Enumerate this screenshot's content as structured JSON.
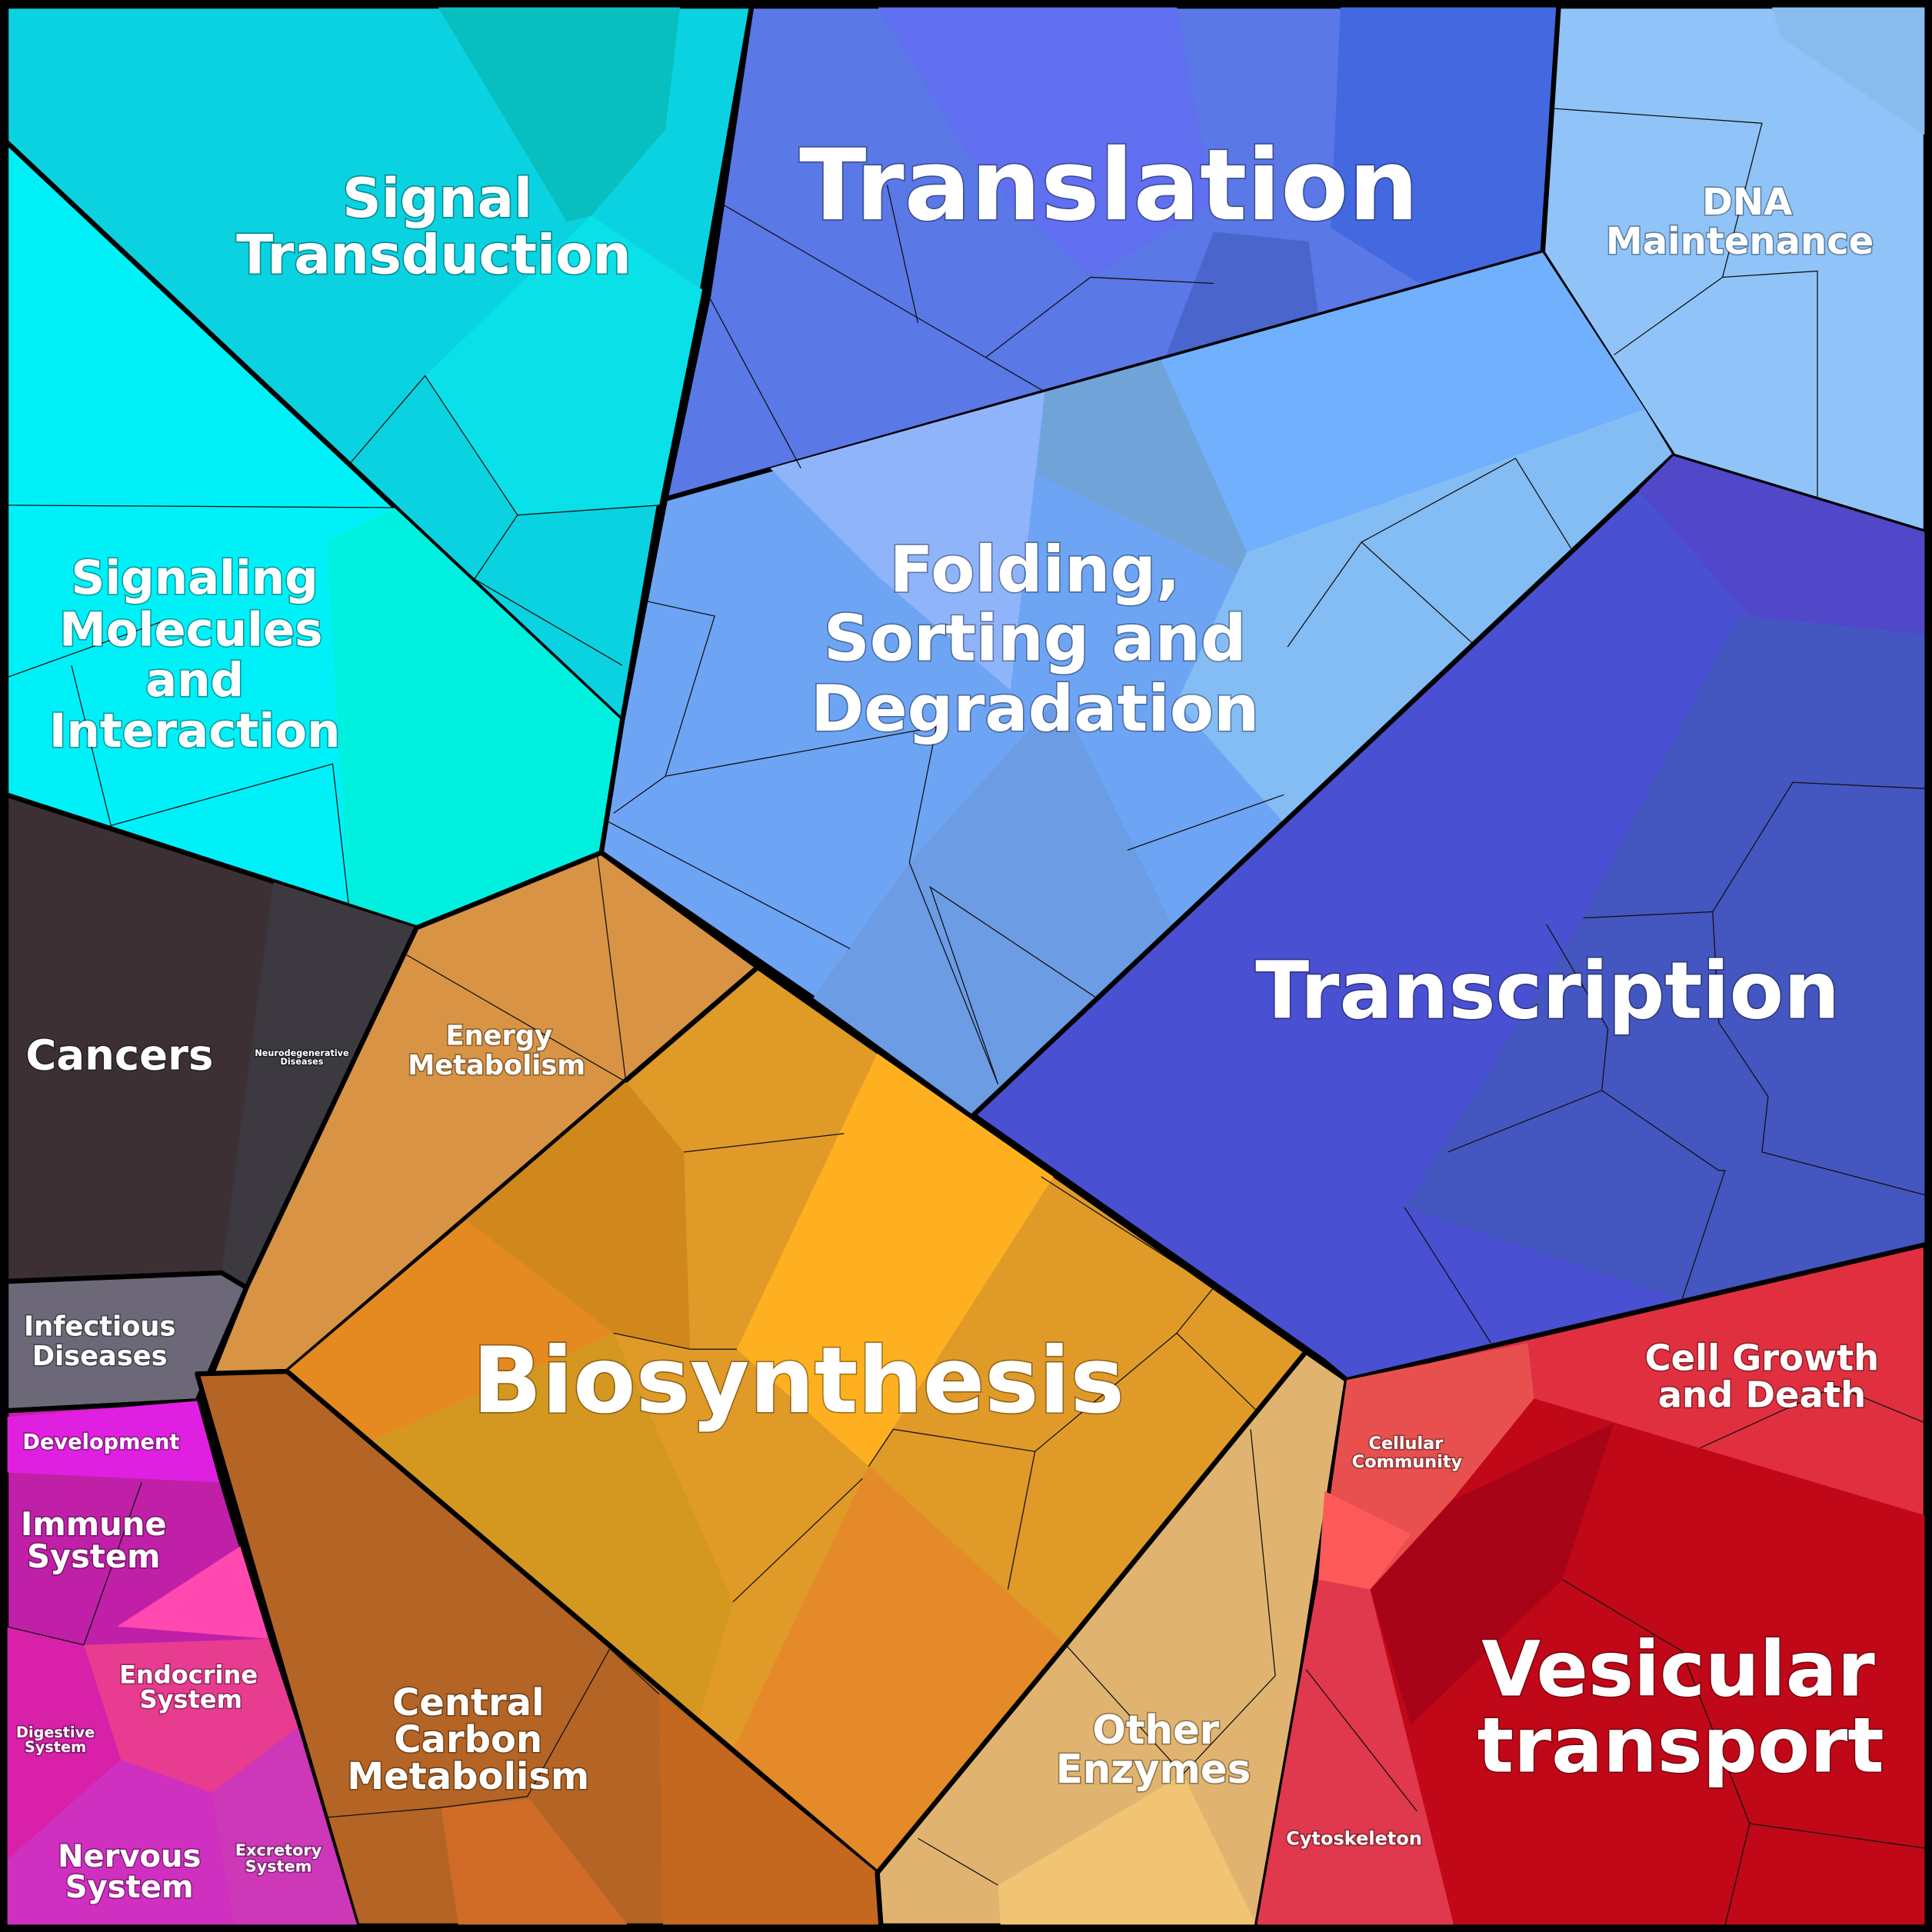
{
  "regions": [
    {
      "label": [
        "Signal",
        "Transduction"
      ]
    },
    {
      "label": [
        "Signaling",
        "Molecules",
        "and",
        "Interaction"
      ]
    },
    {
      "label": [
        "Translation"
      ]
    },
    {
      "label": [
        "DNA",
        "Maintenance"
      ]
    },
    {
      "label": [
        "Folding,",
        "Sorting and",
        "Degradation"
      ]
    },
    {
      "label": [
        "Transcription"
      ]
    },
    {
      "label": [
        "Cancers"
      ]
    },
    {
      "label": [
        "Neurodegenerative",
        "Diseases"
      ]
    },
    {
      "label": [
        "Energy",
        "Metabolism"
      ]
    },
    {
      "label": [
        "Infectious",
        "Diseases"
      ]
    },
    {
      "label": [
        "Biosynthesis"
      ]
    },
    {
      "label": [
        "Development"
      ]
    },
    {
      "label": [
        "Immune",
        "System"
      ]
    },
    {
      "label": [
        "Endocrine",
        "System"
      ]
    },
    {
      "label": [
        "Digestive",
        "System"
      ]
    },
    {
      "label": [
        "Nervous",
        "System"
      ]
    },
    {
      "label": [
        "Excretory",
        "System"
      ]
    },
    {
      "label": [
        "Central",
        "Carbon",
        "Metabolism"
      ]
    },
    {
      "label": [
        "Other",
        "Enzymes"
      ]
    },
    {
      "label": [
        "Cell Growth",
        "and Death"
      ]
    },
    {
      "label": [
        "Cellular",
        "Community"
      ]
    },
    {
      "label": [
        "Vesicular",
        "transport"
      ]
    },
    {
      "label": [
        "Cytoskeleton"
      ]
    }
  ]
}
